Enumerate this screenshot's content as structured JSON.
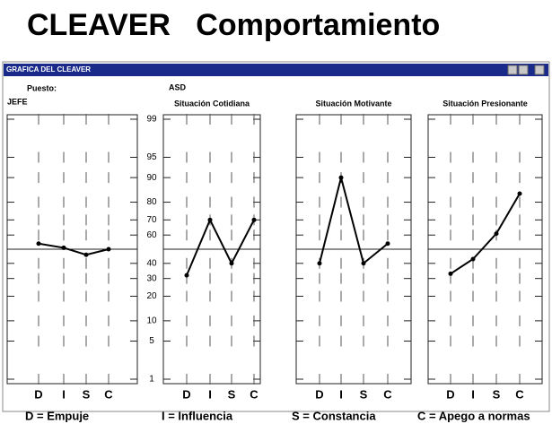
{
  "header": {
    "title": "CLEAVER   Comportamiento"
  },
  "window": {
    "title": "GRAFICA DEL CLEAVER",
    "puesto_label": "Puesto:",
    "puesto": "JEFE",
    "nombre": "ASD"
  },
  "chart_data": {
    "type": "line",
    "yscale": "probit",
    "ylim": [
      1,
      99
    ],
    "yticks": [
      1,
      5,
      10,
      20,
      30,
      40,
      60,
      70,
      80,
      90,
      95,
      99
    ],
    "categories": [
      "D",
      "I",
      "S",
      "C"
    ],
    "color": "#000000",
    "panels": [
      {
        "values": [
          54,
          51,
          46,
          50
        ]
      },
      {
        "title": "Situación Cotidiana",
        "values": [
          32,
          70,
          40,
          70
        ]
      },
      {
        "title": "Situación Motivante",
        "values": [
          40,
          90,
          40,
          54
        ]
      },
      {
        "title": "Situación Presionante",
        "values": [
          33,
          43,
          61,
          84
        ]
      }
    ]
  },
  "legend": [
    "D = Empuje",
    "I = Influencia",
    "S = Constancia",
    "C = Apego a normas"
  ]
}
